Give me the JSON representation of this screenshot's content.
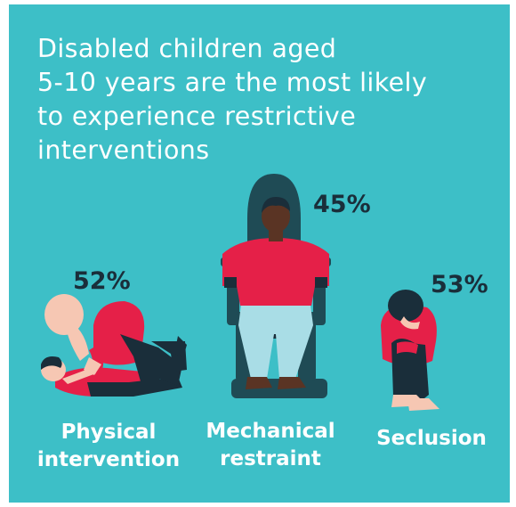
{
  "title_lines": [
    "Disabled children aged",
    "5-10 years are the most likely",
    "to experience restrictive",
    "interventions"
  ],
  "items": [
    {
      "percent": "52%",
      "label_lines": [
        "Physical",
        "intervention"
      ]
    },
    {
      "percent": "45%",
      "label_lines": [
        "Mechanical",
        "restraint"
      ]
    },
    {
      "percent": "53%",
      "label_lines": [
        "Seclusion"
      ]
    }
  ],
  "colors": {
    "background": "#3dbfc7",
    "shirt": "#e52048",
    "dark": "#1a2e3a",
    "skin_light": "#f6c7b3",
    "skin_dark": "#5a3424",
    "trousers_light": "#a9dde6",
    "chair": "#1f4b55"
  }
}
